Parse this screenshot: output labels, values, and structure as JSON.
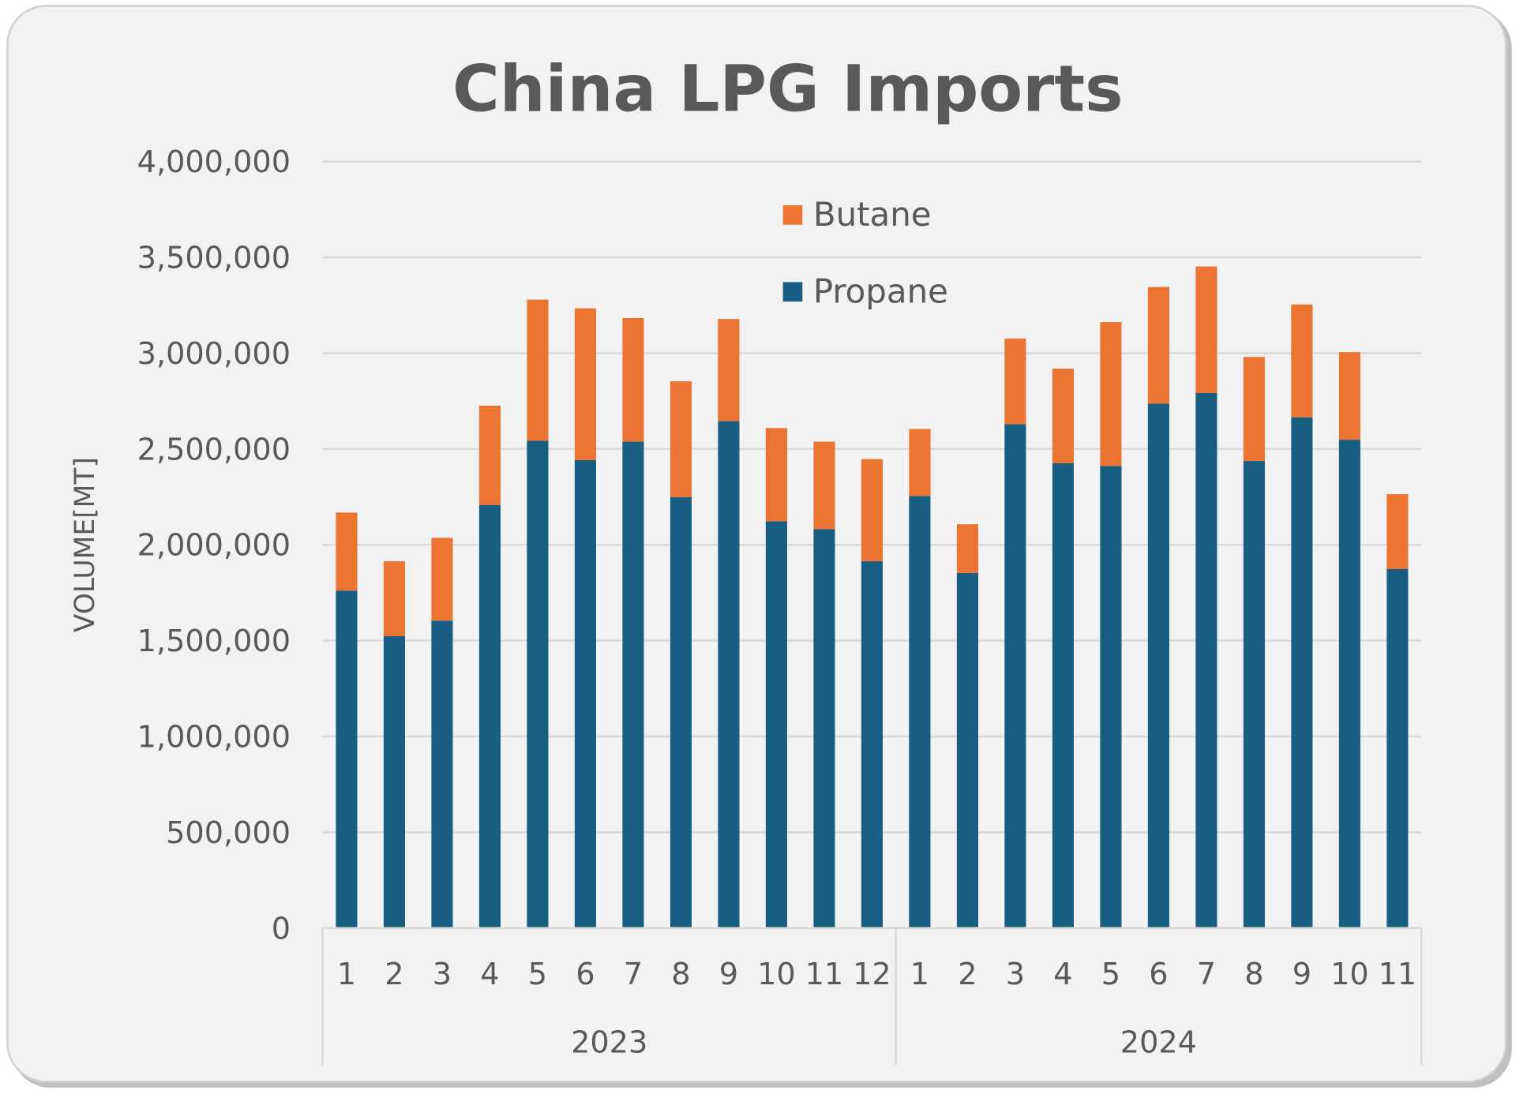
{
  "chart_data": {
    "type": "bar",
    "stacked": true,
    "title": "China LPG Imports",
    "xlabel": "",
    "ylabel": "VOLUME[MT]",
    "ylim": [
      0,
      4000000
    ],
    "yticks": [
      "0",
      "500,000",
      "1,000,000",
      "1,500,000",
      "2,000,000",
      "2,500,000",
      "3,000,000",
      "3,500,000",
      "4,000,000"
    ],
    "ytick_values": [
      0,
      500000,
      1000000,
      1500000,
      2000000,
      2500000,
      3000000,
      3500000,
      4000000
    ],
    "grid": true,
    "legend_position": "top-center",
    "groups": [
      {
        "label": "2023",
        "categories": [
          "1",
          "2",
          "3",
          "4",
          "5",
          "6",
          "7",
          "8",
          "9",
          "10",
          "11",
          "12"
        ]
      },
      {
        "label": "2024",
        "categories": [
          "1",
          "2",
          "3",
          "4",
          "5",
          "6",
          "7",
          "8",
          "9",
          "10",
          "11"
        ]
      }
    ],
    "series": [
      {
        "name": "Propane",
        "color": "#175E82",
        "values": [
          1761000,
          1523000,
          1604000,
          2208000,
          2543000,
          2442000,
          2538000,
          2249000,
          2645000,
          2122000,
          2081000,
          1914000,
          2254000,
          1853000,
          2629000,
          2426000,
          2411000,
          2736000,
          2792000,
          2437000,
          2665000,
          2548000,
          1873000
        ]
      },
      {
        "name": "Butane",
        "color": "#EB7433",
        "values": [
          407000,
          391000,
          432000,
          518000,
          736000,
          792000,
          645000,
          604000,
          533000,
          487000,
          457000,
          533000,
          350000,
          254000,
          447000,
          493000,
          751000,
          609000,
          660000,
          543000,
          589000,
          457000,
          391000
        ]
      }
    ],
    "legend": [
      "Butane",
      "Propane"
    ]
  }
}
